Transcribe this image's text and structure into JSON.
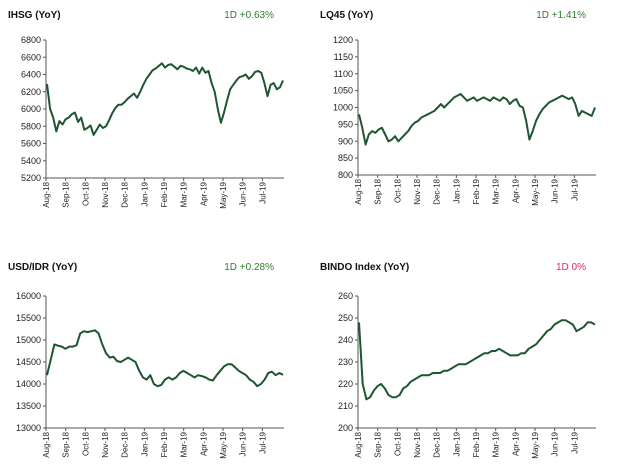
{
  "colors": {
    "line": "#1e5631",
    "positive": "#2e7d32",
    "neutral": "#e8245c"
  },
  "chart_data": [
    {
      "type": "line",
      "title": "IHSG (YoY)",
      "change": "1D +0.63%",
      "change_color": "#2e7d32",
      "xlabel": "",
      "ylabel": "",
      "x_ticks": [
        "Aug-18",
        "Sep-18",
        "Oct-18",
        "Nov-18",
        "Dec-18",
        "Jan-19",
        "Feb-19",
        "Mar-19",
        "Apr-19",
        "May-19",
        "Jun-19",
        "Jul-19"
      ],
      "y_ticks": [
        "5200",
        "5400",
        "5600",
        "5800",
        "6000",
        "6200",
        "6400",
        "6600",
        "6800"
      ],
      "ylim": [
        5200,
        6800
      ],
      "grid": false,
      "series": [
        {
          "values": [
            6290,
            6000,
            5900,
            5740,
            5860,
            5820,
            5880,
            5900,
            5940,
            5960,
            5850,
            5900,
            5760,
            5780,
            5810,
            5700,
            5760,
            5820,
            5780,
            5800,
            5870,
            5950,
            6010,
            6050,
            6050,
            6080,
            6120,
            6150,
            6180,
            6130,
            6200,
            6280,
            6350,
            6400,
            6450,
            6470,
            6500,
            6530,
            6480,
            6510,
            6520,
            6490,
            6460,
            6500,
            6490,
            6470,
            6460,
            6440,
            6480,
            6410,
            6480,
            6420,
            6440,
            6300,
            6200,
            6000,
            5840,
            5960,
            6100,
            6230,
            6280,
            6330,
            6370,
            6380,
            6400,
            6350,
            6380,
            6430,
            6440,
            6420,
            6300,
            6150,
            6280,
            6300,
            6230,
            6250,
            6330
          ]
        }
      ]
    },
    {
      "type": "line",
      "title": "LQ45 (YoY)",
      "change": "1D +1.41%",
      "change_color": "#2e7d32",
      "xlabel": "",
      "ylabel": "",
      "x_ticks": [
        "Aug-18",
        "Sep-18",
        "Oct-18",
        "Nov-18",
        "Dec-18",
        "Jan-19",
        "Feb-19",
        "Mar-19",
        "Apr-19",
        "May-19",
        "Jun-19",
        "Jul-19"
      ],
      "y_ticks": [
        "800",
        "850",
        "900",
        "950",
        "1000",
        "1050",
        "1100",
        "1150",
        "1200"
      ],
      "ylim": [
        800,
        1200
      ],
      "grid": false,
      "series": [
        {
          "values": [
            980,
            940,
            890,
            920,
            930,
            925,
            935,
            940,
            920,
            900,
            905,
            915,
            900,
            910,
            920,
            930,
            945,
            955,
            960,
            970,
            975,
            980,
            985,
            990,
            1000,
            1010,
            1000,
            1010,
            1020,
            1030,
            1035,
            1040,
            1030,
            1020,
            1025,
            1030,
            1020,
            1025,
            1030,
            1025,
            1020,
            1030,
            1025,
            1020,
            1030,
            1025,
            1010,
            1020,
            1025,
            1005,
            1000,
            960,
            905,
            930,
            960,
            980,
            995,
            1005,
            1015,
            1020,
            1025,
            1030,
            1035,
            1030,
            1025,
            1030,
            1010,
            975,
            990,
            985,
            980,
            975,
            1000
          ]
        }
      ]
    },
    {
      "type": "line",
      "title": "USD/IDR  (YoY)",
      "change": "1D +0.28%",
      "change_color": "#2e7d32",
      "xlabel": "",
      "ylabel": "",
      "x_ticks": [
        "Aug-18",
        "Sep-18",
        "Oct-18",
        "Nov-18",
        "Dec-18",
        "Jan-19",
        "Feb-19",
        "Mar-19",
        "Apr-19",
        "May-19",
        "Jun-19",
        "Jul-19"
      ],
      "y_ticks": [
        "13000",
        "13500",
        "14000",
        "14500",
        "15000",
        "15500",
        "16000"
      ],
      "ylim": [
        13000,
        16000
      ],
      "grid": false,
      "series": [
        {
          "values": [
            14200,
            14550,
            14900,
            14870,
            14850,
            14800,
            14850,
            14850,
            14880,
            15150,
            15200,
            15180,
            15200,
            15220,
            15150,
            14900,
            14700,
            14600,
            14620,
            14520,
            14500,
            14550,
            14600,
            14550,
            14500,
            14300,
            14150,
            14100,
            14200,
            14000,
            13950,
            13980,
            14100,
            14150,
            14100,
            14150,
            14250,
            14300,
            14250,
            14200,
            14150,
            14200,
            14180,
            14150,
            14100,
            14080,
            14200,
            14300,
            14400,
            14450,
            14450,
            14380,
            14300,
            14250,
            14200,
            14100,
            14050,
            13950,
            14000,
            14100,
            14250,
            14280,
            14200,
            14250,
            14210
          ]
        }
      ]
    },
    {
      "type": "line",
      "title": "BINDO Index (YoY)",
      "change": "1D 0%",
      "change_color": "#e8245c",
      "xlabel": "",
      "ylabel": "",
      "x_ticks": [
        "Aug-18",
        "Sep-18",
        "Oct-18",
        "Nov-18",
        "Dec-18",
        "Jan-19",
        "Feb-19",
        "Mar-19",
        "Apr-19",
        "May-19",
        "Jun-19",
        "Jul-19"
      ],
      "y_ticks": [
        "200",
        "210",
        "220",
        "230",
        "240",
        "250",
        "260"
      ],
      "ylim": [
        200,
        260
      ],
      "grid": false,
      "series": [
        {
          "values": [
            248,
            220,
            213,
            214,
            217,
            219,
            220,
            218,
            215,
            214,
            214,
            215,
            218,
            219,
            221,
            222,
            223,
            224,
            224,
            224,
            225,
            225,
            225,
            226,
            226,
            227,
            228,
            229,
            229,
            229,
            230,
            231,
            232,
            233,
            234,
            234,
            235,
            235,
            236,
            235,
            234,
            233,
            233,
            233,
            234,
            234,
            236,
            237,
            238,
            240,
            242,
            244,
            245,
            247,
            248,
            249,
            249,
            248,
            247,
            244,
            245,
            246,
            248,
            248,
            247
          ]
        }
      ]
    }
  ]
}
